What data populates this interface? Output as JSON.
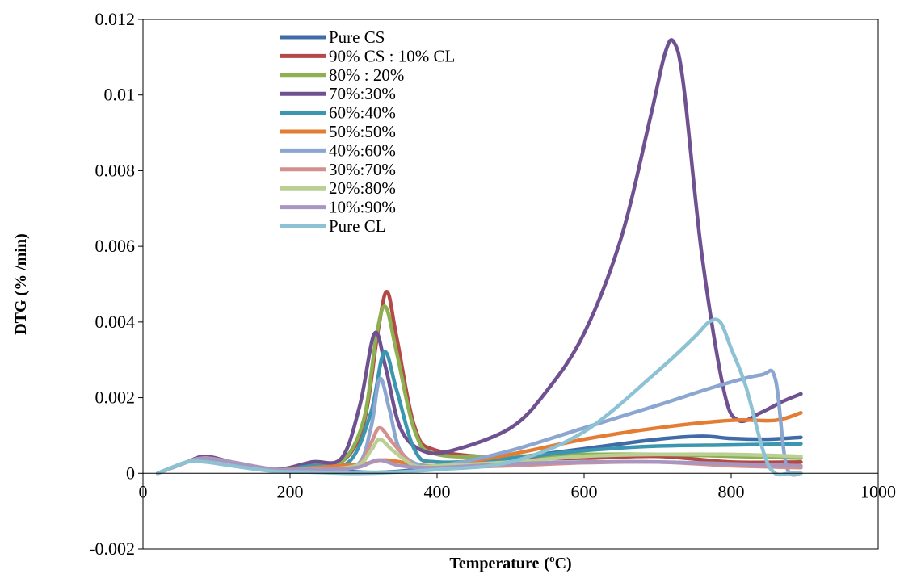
{
  "chart_data": {
    "type": "line",
    "title": "",
    "xlabel": "Temperature",
    "xlabel_unit_prefix": "(",
    "xlabel_unit_sup": "o",
    "xlabel_unit_suffix": "C)",
    "ylabel": "DTG (% /min)",
    "xlim": [
      0,
      1000
    ],
    "ylim": [
      -0.002,
      0.012
    ],
    "x_ticks": [
      0,
      200,
      400,
      600,
      800,
      1000
    ],
    "x_tick_labels": [
      "0",
      "200",
      "400",
      "600",
      "800",
      "1000"
    ],
    "y_ticks": [
      -0.002,
      0,
      0.002,
      0.004,
      0.006,
      0.008,
      0.01,
      0.012
    ],
    "y_tick_labels": [
      "-0.002",
      "0",
      "0.002",
      "0.004",
      "0.006",
      "0.008",
      "0.01",
      "0.012"
    ],
    "grid": false,
    "legend_position": "top-left",
    "series": [
      {
        "name": "Pure CS",
        "color": "#3F6CA8",
        "x": [
          20,
          60,
          85,
          120,
          180,
          230,
          280,
          330,
          400,
          500,
          600,
          700,
          760,
          800,
          850,
          895
        ],
        "y": [
          0.0,
          0.0003,
          0.00042,
          0.0003,
          8e-05,
          0.00012,
          5e-05,
          3e-05,
          0.00015,
          0.0004,
          0.00065,
          0.0009,
          0.00098,
          0.00092,
          0.0009,
          0.00095
        ]
      },
      {
        "name": "90% CS : 10% CL",
        "color": "#B44A47",
        "x": [
          20,
          60,
          85,
          120,
          180,
          230,
          270,
          300,
          320,
          332,
          345,
          370,
          400,
          500,
          600,
          700,
          800,
          895
        ],
        "y": [
          0.0,
          0.0003,
          0.00045,
          0.0003,
          0.0001,
          0.00028,
          0.0003,
          0.0013,
          0.0038,
          0.0048,
          0.0036,
          0.0012,
          0.0006,
          0.0004,
          0.0004,
          0.00045,
          0.0003,
          0.0003
        ]
      },
      {
        "name": "80% : 20%",
        "color": "#8DB050",
        "x": [
          20,
          60,
          85,
          120,
          180,
          230,
          270,
          300,
          318,
          330,
          345,
          370,
          400,
          500,
          600,
          700,
          800,
          895
        ],
        "y": [
          0.0,
          0.0003,
          0.00042,
          0.0003,
          0.0001,
          0.00025,
          0.0003,
          0.0014,
          0.0037,
          0.0044,
          0.0032,
          0.0011,
          0.0005,
          0.00045,
          0.0005,
          0.0005,
          0.00045,
          0.0004
        ]
      },
      {
        "name": "70%:30%",
        "color": "#6F5192",
        "x": [
          20,
          60,
          85,
          120,
          180,
          230,
          270,
          295,
          315,
          330,
          350,
          380,
          420,
          500,
          550,
          600,
          650,
          690,
          710,
          722,
          735,
          760,
          790,
          810,
          840,
          870,
          895
        ],
        "y": [
          0.0,
          0.0003,
          0.00045,
          0.0003,
          0.0001,
          0.0003,
          0.0004,
          0.0018,
          0.0037,
          0.0028,
          0.0012,
          0.0006,
          0.0006,
          0.0012,
          0.0022,
          0.0037,
          0.0062,
          0.0094,
          0.0111,
          0.0114,
          0.0103,
          0.0058,
          0.0022,
          0.0014,
          0.0016,
          0.0019,
          0.0021
        ]
      },
      {
        "name": "60%:40%",
        "color": "#3A97AF",
        "x": [
          20,
          60,
          85,
          120,
          180,
          230,
          280,
          310,
          328,
          345,
          370,
          400,
          500,
          600,
          700,
          800,
          895
        ],
        "y": [
          0.0,
          0.0003,
          0.0004,
          0.0003,
          0.0001,
          0.0002,
          0.0003,
          0.0016,
          0.0032,
          0.0022,
          0.0006,
          0.0003,
          0.0004,
          0.0006,
          0.00072,
          0.00075,
          0.00078
        ]
      },
      {
        "name": "50%:50%",
        "color": "#E47C33",
        "x": [
          20,
          60,
          85,
          120,
          180,
          230,
          300,
          330,
          400,
          500,
          600,
          700,
          800,
          860,
          895
        ],
        "y": [
          0.0,
          0.0003,
          0.0004,
          0.0003,
          0.0001,
          0.00015,
          0.00025,
          0.00035,
          0.0002,
          0.0005,
          0.0009,
          0.0012,
          0.0014,
          0.0014,
          0.0016
        ]
      },
      {
        "name": "40%:60%",
        "color": "#8BA6D0",
        "x": [
          20,
          60,
          85,
          120,
          180,
          230,
          290,
          310,
          322,
          335,
          350,
          380,
          420,
          500,
          600,
          700,
          780,
          840,
          860,
          875,
          895
        ],
        "y": [
          0.0,
          0.0003,
          0.00038,
          0.0003,
          0.0001,
          0.00012,
          0.0002,
          0.0012,
          0.0025,
          0.0017,
          0.0006,
          0.0002,
          0.00025,
          0.0006,
          0.0012,
          0.0018,
          0.0023,
          0.0026,
          0.0025,
          0.0002,
          0.0
        ]
      },
      {
        "name": "30%:70%",
        "color": "#D4908D",
        "x": [
          20,
          60,
          85,
          120,
          180,
          230,
          290,
          310,
          322,
          340,
          370,
          400,
          500,
          600,
          700,
          800,
          895
        ],
        "y": [
          0.0,
          0.0003,
          0.0004,
          0.0003,
          0.0001,
          0.0001,
          0.0002,
          0.0008,
          0.0012,
          0.0008,
          0.0002,
          0.00015,
          0.0002,
          0.00028,
          0.0003,
          0.0002,
          0.00015
        ]
      },
      {
        "name": "20%:80%",
        "color": "#B9CF93",
        "x": [
          20,
          60,
          85,
          120,
          180,
          230,
          290,
          310,
          322,
          340,
          370,
          400,
          500,
          600,
          700,
          800,
          895
        ],
        "y": [
          0.0,
          0.0003,
          0.0004,
          0.0003,
          0.0001,
          0.0001,
          0.0002,
          0.0006,
          0.0009,
          0.0006,
          0.0002,
          0.0002,
          0.0003,
          0.00045,
          0.0005,
          0.0005,
          0.00045
        ]
      },
      {
        "name": "10%:90%",
        "color": "#A896C1",
        "x": [
          20,
          60,
          85,
          120,
          180,
          230,
          290,
          320,
          350,
          400,
          500,
          600,
          700,
          800,
          895
        ],
        "y": [
          0.0,
          0.0003,
          0.0004,
          0.0003,
          0.0001,
          0.0001,
          0.00015,
          0.00035,
          0.0002,
          0.00015,
          0.00025,
          0.0003,
          0.0003,
          0.00025,
          0.0002
        ]
      },
      {
        "name": "Pure CL",
        "color": "#8CC2D3",
        "x": [
          20,
          60,
          85,
          120,
          180,
          230,
          300,
          400,
          500,
          600,
          700,
          750,
          770,
          785,
          800,
          820,
          845,
          860,
          880,
          895
        ],
        "y": [
          0.0,
          0.0003,
          0.0003,
          0.0002,
          5e-05,
          3e-05,
          0.0,
          0.0001,
          0.0003,
          0.0011,
          0.0027,
          0.0036,
          0.004,
          0.004,
          0.0033,
          0.0023,
          0.0005,
          0.0,
          0.0,
          0.0
        ]
      }
    ]
  }
}
